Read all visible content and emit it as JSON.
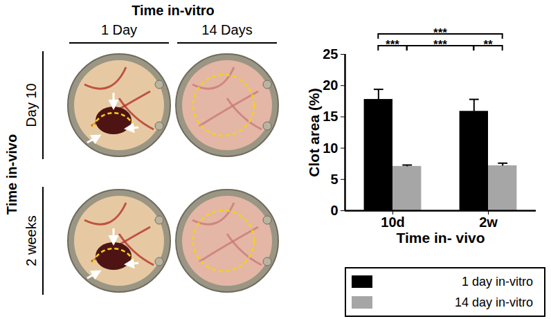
{
  "figure": {
    "column_title": "Time in-vitro",
    "columns": [
      "1 Day",
      "14 Days"
    ],
    "row_title": "Time in-vivo",
    "rows": [
      "Day 10",
      "2 weeks"
    ]
  },
  "chart_data": {
    "type": "bar",
    "categories": [
      "10d",
      "2w"
    ],
    "series": [
      {
        "name": "1 day in-vitro",
        "color": "#000000",
        "values": [
          17.8,
          15.9
        ],
        "errors": [
          1.6,
          1.9
        ]
      },
      {
        "name": "14 day in-vitro",
        "color": "#a6a6a6",
        "values": [
          7.1,
          7.2
        ],
        "errors": [
          0.2,
          0.4
        ]
      }
    ],
    "ylim": [
      0,
      25
    ],
    "yticks": [
      0,
      5,
      10,
      15,
      20,
      25
    ],
    "ylabel": "Clot area (%)",
    "xlabel": "Time in- vivo",
    "legend": "bottom",
    "grid": false,
    "significance": [
      {
        "from": {
          "category": "10d",
          "series": "1 day in-vitro"
        },
        "to": {
          "category": "10d",
          "series": "14 day in-vitro"
        },
        "label": "***"
      },
      {
        "from": {
          "category": "2w",
          "series": "1 day in-vitro"
        },
        "to": {
          "category": "2w",
          "series": "14 day in-vitro"
        },
        "label": "**"
      },
      {
        "from": {
          "category": "10d",
          "series": "14 day in-vitro"
        },
        "to": {
          "category": "2w",
          "series": "1 day in-vitro"
        },
        "label": "***"
      },
      {
        "from": {
          "category": "10d",
          "series": "1 day in-vitro"
        },
        "to": {
          "category": "2w",
          "series": "14 day in-vitro"
        },
        "label": "***"
      }
    ]
  }
}
